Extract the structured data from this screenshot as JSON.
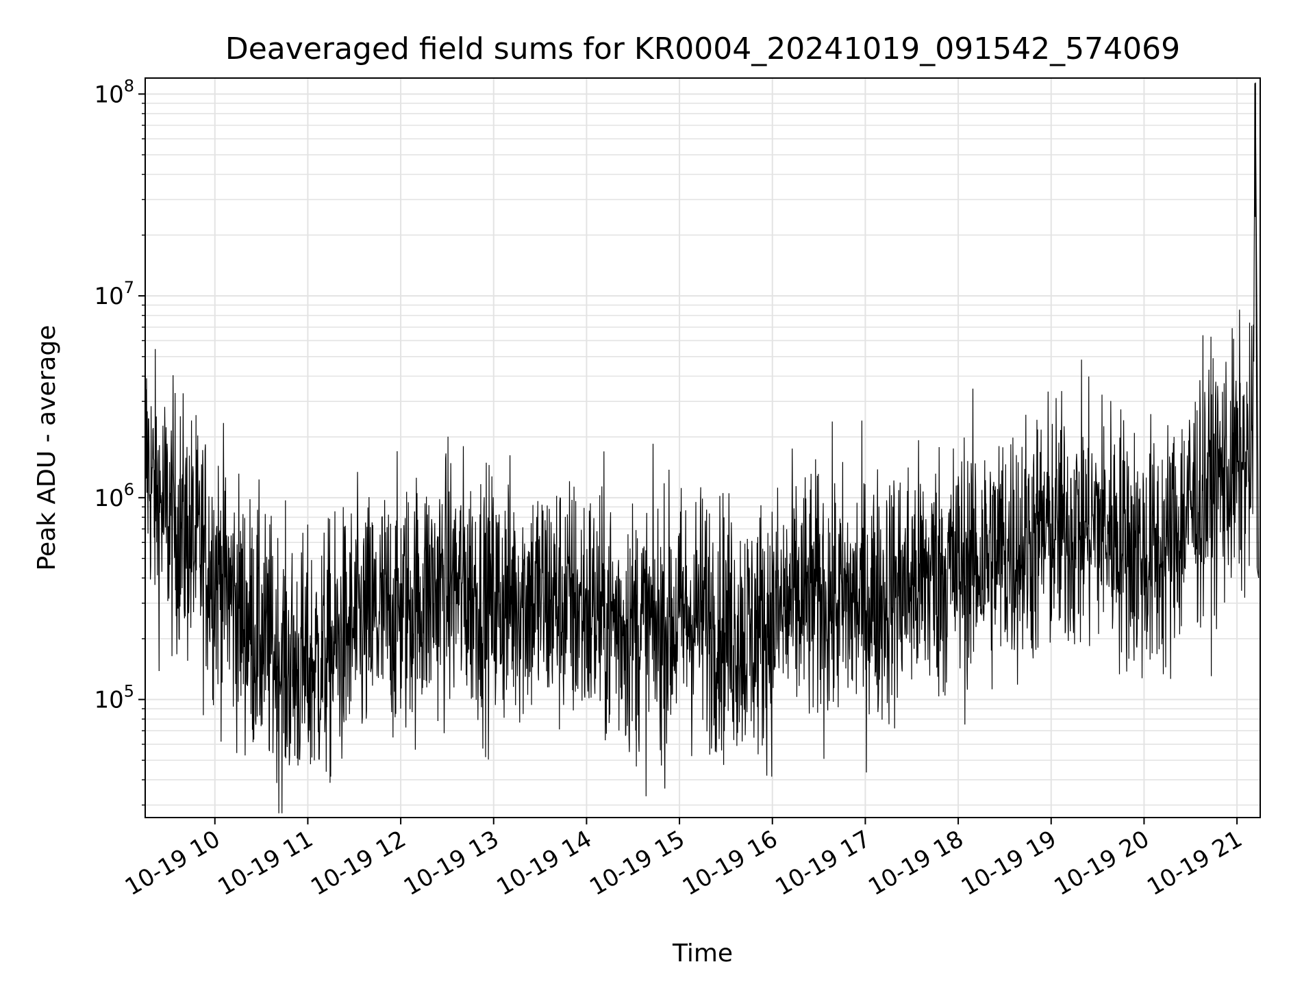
{
  "chart_data": {
    "type": "line",
    "title": "Deaveraged field sums for KR0004_20241019_091542_574069",
    "xlabel": "Time",
    "ylabel": "Peak ADU - average",
    "yscale": "log",
    "ylim": [
      26000,
      120000000
    ],
    "xlim": [
      "2024-10-19 09:15",
      "2024-10-19 21:15"
    ],
    "grid": true,
    "line_color": "#000000",
    "x_ticks": [
      "10-19 10",
      "10-19 11",
      "10-19 12",
      "10-19 13",
      "10-19 14",
      "10-19 15",
      "10-19 16",
      "10-19 17",
      "10-19 18",
      "10-19 19",
      "10-19 20",
      "10-19 21"
    ],
    "series": [
      {
        "x": [
          "2024-10-19 09:16",
          "2024-10-19 09:20",
          "2024-10-19 09:25",
          "2024-10-19 09:30",
          "2024-10-19 09:35",
          "2024-10-19 09:45",
          "2024-10-19 09:55",
          "2024-10-19 10:05",
          "2024-10-19 10:15",
          "2024-10-19 10:30",
          "2024-10-19 10:45",
          "2024-10-19 11:00",
          "2024-10-19 11:15",
          "2024-10-19 11:30",
          "2024-10-19 11:45",
          "2024-10-19 12:00",
          "2024-10-19 12:15",
          "2024-10-19 12:30",
          "2024-10-19 12:45",
          "2024-10-19 13:00",
          "2024-10-19 13:15",
          "2024-10-19 13:30",
          "2024-10-19 13:45",
          "2024-10-19 14:00",
          "2024-10-19 14:15",
          "2024-10-19 14:30",
          "2024-10-19 14:45",
          "2024-10-19 15:00",
          "2024-10-19 15:15",
          "2024-10-19 15:30",
          "2024-10-19 15:45",
          "2024-10-19 16:00",
          "2024-10-19 16:15",
          "2024-10-19 16:30",
          "2024-10-19 16:45",
          "2024-10-19 17:00",
          "2024-10-19 17:15",
          "2024-10-19 17:30",
          "2024-10-19 17:45",
          "2024-10-19 18:00",
          "2024-10-19 18:15",
          "2024-10-19 18:30",
          "2024-10-19 18:45",
          "2024-10-19 19:00",
          "2024-10-19 19:15",
          "2024-10-19 19:30",
          "2024-10-19 19:45",
          "2024-10-19 20:00",
          "2024-10-19 20:15",
          "2024-10-19 20:30",
          "2024-10-19 20:45",
          "2024-10-19 21:00",
          "2024-10-19 21:10",
          "2024-10-19 21:12",
          "2024-10-19 21:13",
          "2024-10-19 21:14"
        ],
        "values": [
          1600000,
          1100000,
          900000,
          800000,
          750000,
          600000,
          500000,
          400000,
          280000,
          200000,
          150000,
          140000,
          170000,
          220000,
          250000,
          280000,
          320000,
          380000,
          350000,
          300000,
          330000,
          320000,
          300000,
          280000,
          250000,
          230000,
          220000,
          250000,
          270000,
          230000,
          210000,
          250000,
          300000,
          320000,
          300000,
          310000,
          330000,
          380000,
          420000,
          450000,
          500000,
          550000,
          600000,
          700000,
          700000,
          750000,
          650000,
          500000,
          550000,
          900000,
          1200000,
          1400000,
          1500000,
          80000000,
          450000,
          400000
        ]
      }
    ]
  }
}
